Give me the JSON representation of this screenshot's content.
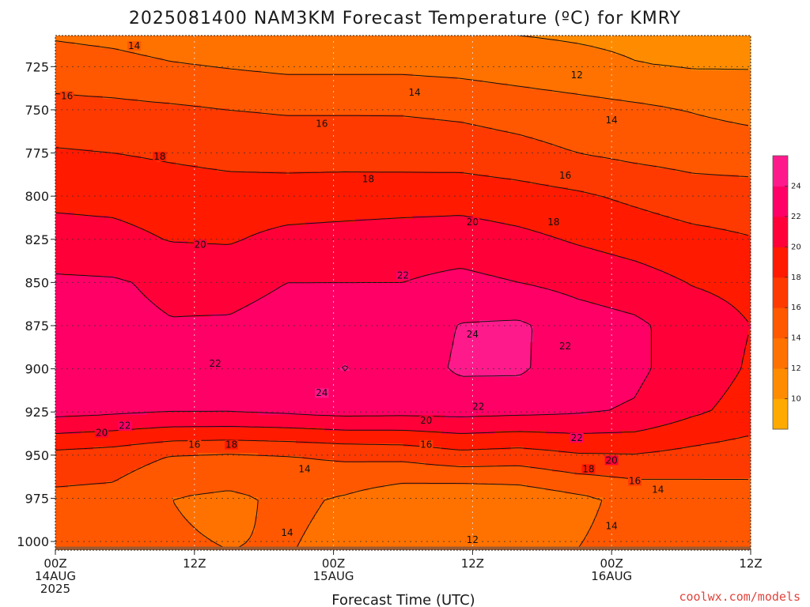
{
  "chart_data": {
    "type": "heatmap",
    "title": "2025081400 NAM3KM Forecast Temperature (ºC) for KMRY",
    "xlabel": "Forecast Time (UTC)",
    "ylabel": "",
    "x_unit": "forecast hour",
    "xlim": [
      0,
      60
    ],
    "ylim": [
      1005,
      707
    ],
    "y_scale": "pressure (inverted)",
    "grid": true,
    "x_ticks": [
      {
        "x": 0,
        "lines": [
          "00Z",
          "14AUG",
          "2025"
        ]
      },
      {
        "x": 12,
        "lines": [
          "12Z"
        ]
      },
      {
        "x": 24,
        "lines": [
          "00Z",
          "15AUG"
        ]
      },
      {
        "x": 36,
        "lines": [
          "12Z"
        ]
      },
      {
        "x": 48,
        "lines": [
          "00Z",
          "16AUG"
        ]
      },
      {
        "x": 60,
        "lines": [
          "12Z"
        ]
      }
    ],
    "y_ticks": [
      725,
      750,
      775,
      800,
      825,
      850,
      875,
      900,
      925,
      950,
      975,
      1000
    ],
    "colorbar": {
      "levels": [
        8,
        10,
        12,
        14,
        16,
        18,
        20,
        22,
        24,
        26
      ],
      "tick_labels": [
        10,
        12,
        14,
        16,
        18,
        20,
        22,
        24
      ],
      "colors": [
        "#ffaa00",
        "#ff8c00",
        "#ff7200",
        "#ff5800",
        "#ff3a00",
        "#ff1a00",
        "#ff0038",
        "#ff0066",
        "#ff1a8c"
      ]
    },
    "terrain_color": "#9b5a32",
    "isotherms": [
      12,
      14,
      16,
      18,
      20,
      22,
      24
    ],
    "grid_rows": [
      {
        "p": 707,
        "t": [
          13.8,
          13.5,
          13.0,
          12.8,
          12.6,
          12.5,
          12.5,
          12.3,
          12.0,
          11.8,
          11.6,
          11.5,
          11.4
        ]
      },
      {
        "p": 725,
        "t": [
          15.0,
          14.7,
          14.2,
          13.9,
          13.6,
          13.6,
          13.6,
          13.4,
          13.0,
          12.6,
          12.1,
          11.9,
          11.9
        ]
      },
      {
        "p": 750,
        "t": [
          16.6,
          16.5,
          16.3,
          16.0,
          15.8,
          15.8,
          15.8,
          15.6,
          15.2,
          14.8,
          14.4,
          13.9,
          13.4
        ]
      },
      {
        "p": 775,
        "t": [
          18.2,
          18.0,
          17.7,
          17.4,
          17.3,
          17.3,
          17.2,
          17.0,
          16.6,
          16.0,
          15.5,
          15.2,
          15.0
        ]
      },
      {
        "p": 800,
        "t": [
          19.5,
          19.4,
          19.0,
          18.8,
          18.8,
          18.9,
          19.0,
          19.2,
          18.8,
          18.3,
          17.6,
          16.9,
          16.8
        ]
      },
      {
        "p": 825,
        "t": [
          20.8,
          20.6,
          19.9,
          19.8,
          20.6,
          20.8,
          21.0,
          21.0,
          20.5,
          19.8,
          19.2,
          18.6,
          18.1
        ]
      },
      {
        "p": 850,
        "t": [
          22.3,
          22.2,
          21.6,
          21.4,
          22.0,
          22.0,
          22.0,
          22.5,
          22.0,
          21.4,
          20.8,
          19.9,
          19.5
        ]
      },
      {
        "p": 875,
        "t": [
          22.8,
          22.5,
          22.1,
          22.2,
          22.7,
          22.8,
          22.8,
          24.1,
          24.3,
          23.0,
          22.4,
          21.0,
          20.0
        ]
      },
      {
        "p": 900,
        "t": [
          23.0,
          22.7,
          22.0,
          22.0,
          22.8,
          24.1,
          23.0,
          24.3,
          24.3,
          22.8,
          22.4,
          21.0,
          19.8
        ]
      },
      {
        "p": 925,
        "t": [
          22.6,
          22.3,
          22.1,
          22.1,
          22.3,
          22.6,
          22.5,
          22.6,
          22.4,
          22.2,
          21.8,
          20.3,
          19.3
        ]
      },
      {
        "p": 950,
        "t": [
          17.4,
          17.0,
          16.0,
          15.8,
          16.0,
          16.4,
          16.6,
          17.4,
          17.1,
          17.8,
          17.9,
          17.4,
          16.9
        ]
      },
      {
        "p": 975,
        "t": [
          15.5,
          15.4,
          14.0,
          13.6,
          14.4,
          13.8,
          12.6,
          12.2,
          12.6,
          13.6,
          14.5,
          14.9,
          15.3
        ]
      },
      {
        "p": 1005,
        "t": [
          15.6,
          15.4,
          14.2,
          14.0,
          14.1,
          13.4,
          12.8,
          12.5,
          12.8,
          14.0,
          14.6,
          14.9,
          15.1
        ]
      }
    ],
    "contour_labels": [
      {
        "v": 14,
        "x": 6.8,
        "p": 713
      },
      {
        "v": 12,
        "x": 45.0,
        "p": 730
      },
      {
        "v": 16,
        "x": 1.0,
        "p": 742
      },
      {
        "v": 14,
        "x": 31.0,
        "p": 740
      },
      {
        "v": 16,
        "x": 23.0,
        "p": 758
      },
      {
        "v": 14,
        "x": 48.0,
        "p": 756
      },
      {
        "v": 18,
        "x": 9.0,
        "p": 777
      },
      {
        "v": 18,
        "x": 27.0,
        "p": 790
      },
      {
        "v": 16,
        "x": 44.0,
        "p": 788
      },
      {
        "v": 20,
        "x": 36.0,
        "p": 815
      },
      {
        "v": 18,
        "x": 43.0,
        "p": 815
      },
      {
        "v": 20,
        "x": 12.5,
        "p": 828
      },
      {
        "v": 22,
        "x": 30.0,
        "p": 846
      },
      {
        "v": 24,
        "x": 36.0,
        "p": 880
      },
      {
        "v": 22,
        "x": 44.0,
        "p": 887
      },
      {
        "v": 22,
        "x": 13.8,
        "p": 897
      },
      {
        "v": 24,
        "x": 23.0,
        "p": 914
      },
      {
        "v": 22,
        "x": 36.5,
        "p": 922
      },
      {
        "v": 20,
        "x": 32.0,
        "p": 930
      },
      {
        "v": 22,
        "x": 6.0,
        "p": 933
      },
      {
        "v": 20,
        "x": 4.0,
        "p": 937
      },
      {
        "v": 22,
        "x": 45.0,
        "p": 940
      },
      {
        "v": 16,
        "x": 12.0,
        "p": 944
      },
      {
        "v": 18,
        "x": 15.2,
        "p": 944
      },
      {
        "v": 16,
        "x": 32.0,
        "p": 944
      },
      {
        "v": 20,
        "x": 48.0,
        "p": 953
      },
      {
        "v": 14,
        "x": 21.5,
        "p": 958
      },
      {
        "v": 18,
        "x": 46.0,
        "p": 958
      },
      {
        "v": 16,
        "x": 50.0,
        "p": 965
      },
      {
        "v": 14,
        "x": 52.0,
        "p": 970
      },
      {
        "v": 14,
        "x": 20.0,
        "p": 995
      },
      {
        "v": 12,
        "x": 36.0,
        "p": 999
      },
      {
        "v": 14,
        "x": 48.0,
        "p": 991
      }
    ]
  },
  "footer": {
    "credit": "coolwx.com/models"
  }
}
